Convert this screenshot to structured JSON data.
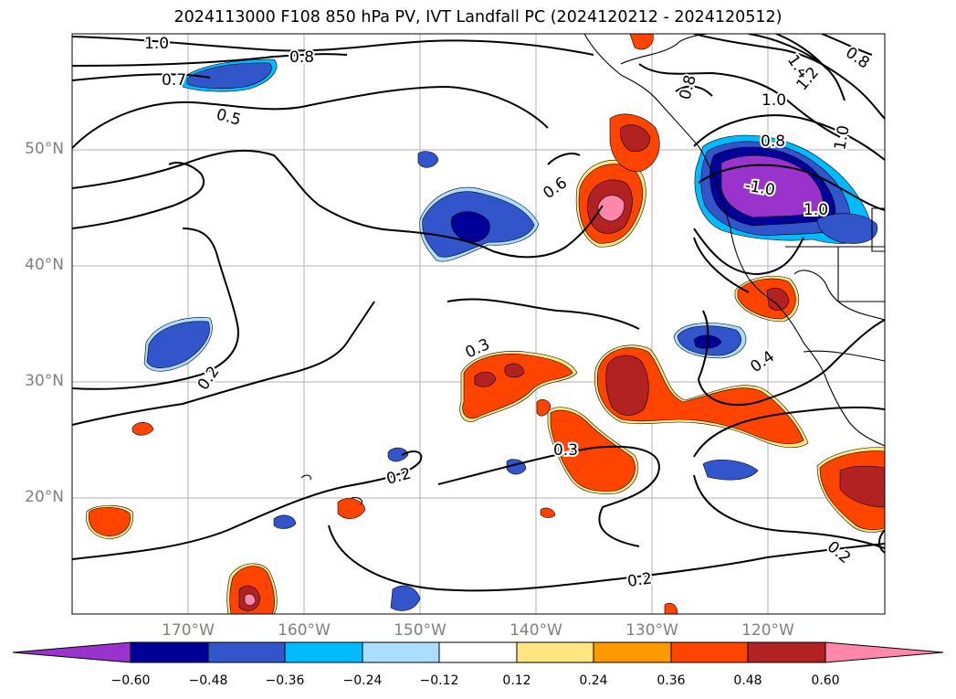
{
  "title": "2024113000 F108 850 hPa PV, IVT Landfall PC (2024120212 - 2024120512)",
  "lat_labels": [
    "50°N",
    "40°N",
    "30°N",
    "20°N"
  ],
  "lon_labels": [
    "170°W",
    "160°W",
    "150°W",
    "140°W",
    "130°W",
    "120°W"
  ],
  "contour_labels": [
    "1.0",
    "0.8",
    "0.7",
    "0.5",
    "0.6",
    "0.8",
    "1.0",
    "1.4",
    "1.2",
    "0.8",
    "1.0",
    "0.8",
    "-1.0",
    "1.0",
    "0.3",
    "0.2",
    "0.3",
    "0.2",
    "0.4",
    "0.2",
    "0.2"
  ],
  "colorbar": {
    "ticks": [
      "−0.60",
      "−0.48",
      "−0.36",
      "−0.24",
      "−0.12",
      "0.12",
      "0.24",
      "0.36",
      "0.48",
      "0.60"
    ],
    "colors": [
      "#9933cc",
      "#000099",
      "#3355cc",
      "#00bbff",
      "#aaddff",
      "#ffffff",
      "#ffe680",
      "#ff9900",
      "#ff4400",
      "#b22222",
      "#ff88aa"
    ]
  },
  "map_extent": {
    "lon_range": [
      -180,
      -110
    ],
    "lat_range": [
      10,
      60
    ]
  }
}
